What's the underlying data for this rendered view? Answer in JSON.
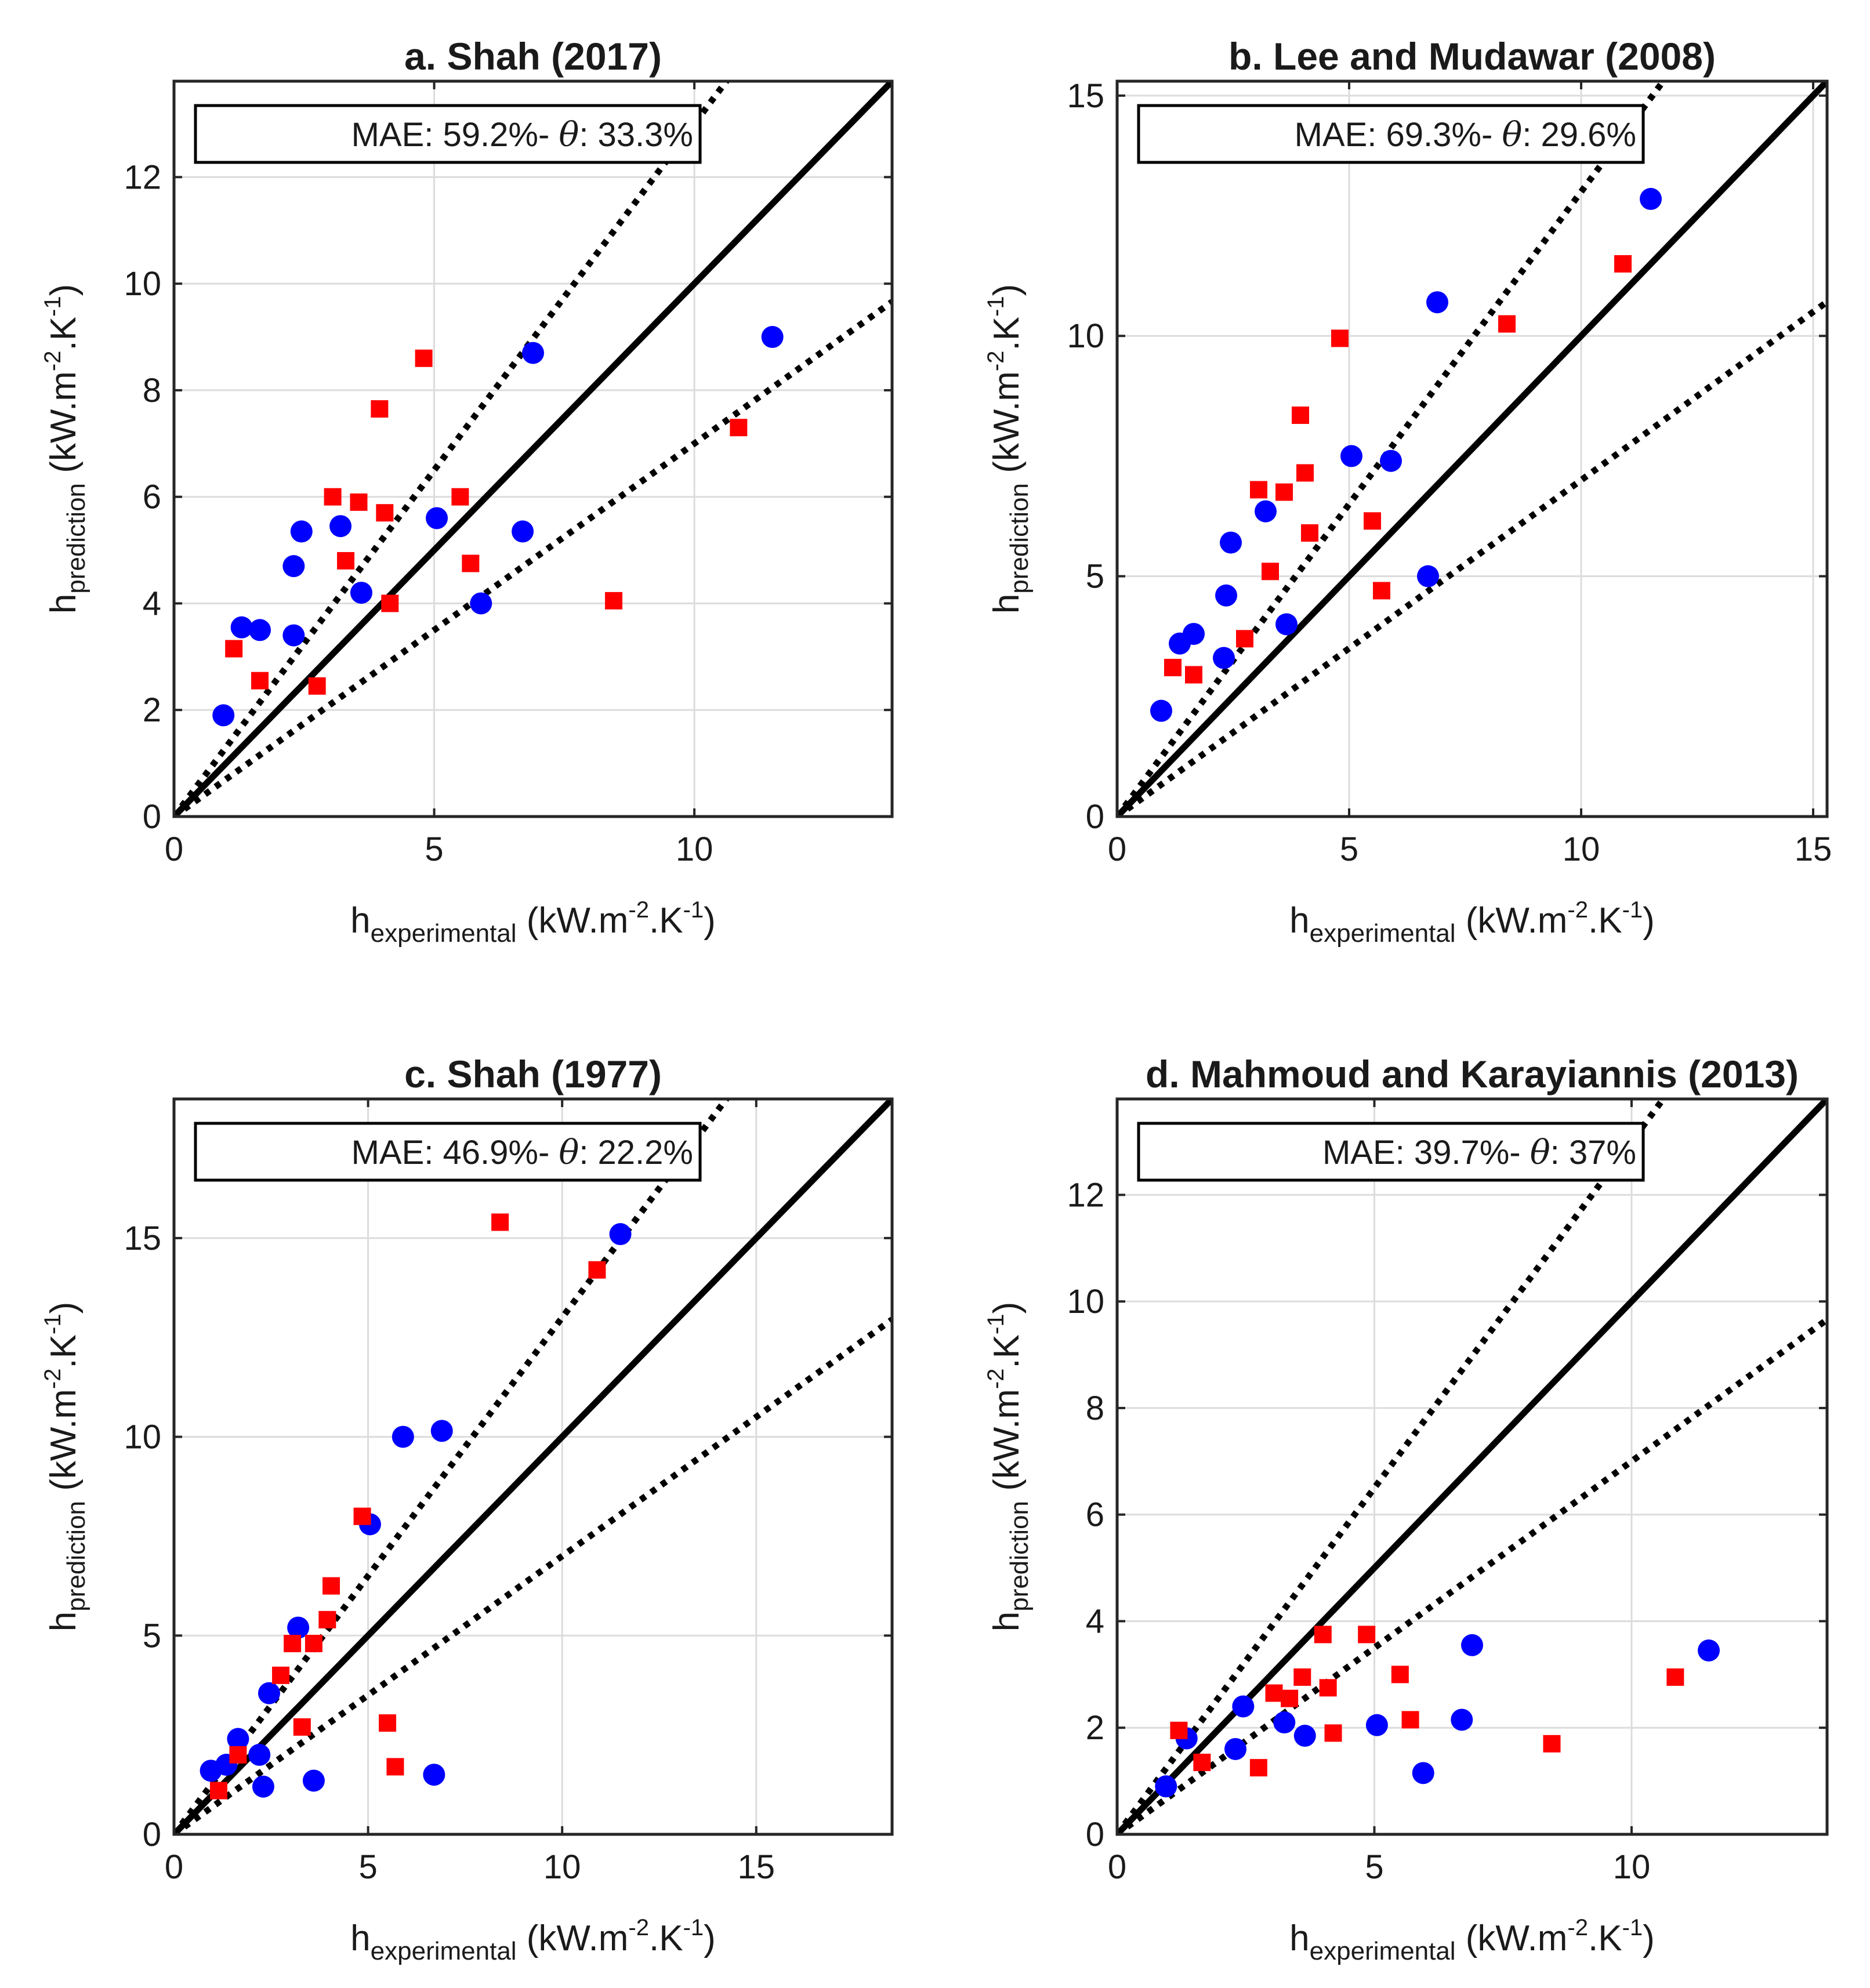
{
  "figure": {
    "xlabel_base": "h",
    "xlabel_sub": "experimental",
    "ylabel_base": "h",
    "ylabel_sub": "prediction",
    "unit_prefix": "(kW.m",
    "unit_sup1": "-2",
    "unit_mid": ".K",
    "unit_sup2": "-1",
    "unit_suffix": ")",
    "colors": {
      "circle": "#0000ff",
      "square": "#ff0000",
      "axis": "#262626",
      "grid": "#dcdcdc"
    }
  },
  "chart_data": [
    {
      "type": "scatter",
      "title": "a. Shah (2017)",
      "mae_label": "MAE: 59.2%- ",
      "theta_symbol": "θ",
      "theta_label": ": 33.3%",
      "xlim": [
        0,
        13.8
      ],
      "ylim": [
        0,
        13.8
      ],
      "xticks": [
        0,
        5,
        10
      ],
      "yticks": [
        0,
        2,
        4,
        6,
        8,
        10,
        12
      ],
      "reference_lines": {
        "y_equals_x": true,
        "band": [
          0.7,
          1.3
        ]
      },
      "series": [
        {
          "name": "circles",
          "marker": "circle",
          "color": "#0000ff",
          "points": [
            [
              0.95,
              1.9
            ],
            [
              1.3,
              3.55
            ],
            [
              1.65,
              3.5
            ],
            [
              2.3,
              4.7
            ],
            [
              2.45,
              5.35
            ],
            [
              2.3,
              3.4
            ],
            [
              3.2,
              5.45
            ],
            [
              3.6,
              4.2
            ],
            [
              5.05,
              5.6
            ],
            [
              5.9,
              4.0
            ],
            [
              6.7,
              5.35
            ],
            [
              6.9,
              8.7
            ],
            [
              11.5,
              9.0
            ]
          ]
        },
        {
          "name": "squares",
          "marker": "square",
          "color": "#ff0000",
          "points": [
            [
              1.15,
              3.15
            ],
            [
              1.65,
              2.55
            ],
            [
              2.75,
              2.45
            ],
            [
              3.05,
              6.0
            ],
            [
              3.3,
              4.8
            ],
            [
              3.55,
              5.9
            ],
            [
              3.95,
              7.65
            ],
            [
              4.05,
              5.7
            ],
            [
              4.15,
              4.0
            ],
            [
              4.8,
              8.6
            ],
            [
              5.5,
              6.0
            ],
            [
              5.7,
              4.75
            ],
            [
              8.45,
              4.05
            ],
            [
              10.85,
              7.3
            ]
          ]
        }
      ]
    },
    {
      "type": "scatter",
      "title": "b. Lee and Mudawar (2008)",
      "mae_label": "MAE: 69.3%- ",
      "theta_symbol": "θ",
      "theta_label": ": 29.6%",
      "xlim": [
        0,
        15.3
      ],
      "ylim": [
        0,
        15.3
      ],
      "xticks": [
        0,
        5,
        10,
        15
      ],
      "yticks": [
        0,
        5,
        10,
        15
      ],
      "reference_lines": {
        "y_equals_x": true,
        "band": [
          0.7,
          1.3
        ]
      },
      "series": [
        {
          "name": "circles",
          "marker": "circle",
          "color": "#0000ff",
          "points": [
            [
              0.95,
              2.2
            ],
            [
              1.35,
              3.6
            ],
            [
              1.65,
              3.8
            ],
            [
              2.3,
              3.3
            ],
            [
              2.35,
              4.6
            ],
            [
              2.45,
              5.7
            ],
            [
              3.2,
              6.35
            ],
            [
              3.65,
              4.0
            ],
            [
              5.05,
              7.5
            ],
            [
              5.9,
              7.4
            ],
            [
              6.7,
              5.0
            ],
            [
              6.9,
              10.7
            ],
            [
              11.5,
              12.85
            ]
          ]
        },
        {
          "name": "squares",
          "marker": "square",
          "color": "#ff0000",
          "points": [
            [
              1.2,
              3.1
            ],
            [
              1.65,
              2.95
            ],
            [
              2.75,
              3.7
            ],
            [
              3.05,
              6.8
            ],
            [
              3.3,
              5.1
            ],
            [
              3.6,
              6.75
            ],
            [
              3.95,
              8.35
            ],
            [
              4.05,
              7.15
            ],
            [
              4.15,
              5.9
            ],
            [
              4.8,
              9.95
            ],
            [
              5.5,
              6.15
            ],
            [
              5.7,
              4.7
            ],
            [
              8.4,
              10.25
            ],
            [
              10.9,
              11.5
            ]
          ]
        }
      ]
    },
    {
      "type": "scatter",
      "title": "c. Shah (1977)",
      "mae_label": "MAE: 46.9%- ",
      "theta_symbol": "θ",
      "theta_label": ": 22.2%",
      "xlim": [
        0,
        18.5
      ],
      "ylim": [
        0,
        18.5
      ],
      "xticks": [
        0,
        5,
        10,
        15
      ],
      "yticks": [
        0,
        5,
        10,
        15
      ],
      "reference_lines": {
        "y_equals_x": true,
        "band": [
          0.7,
          1.3
        ]
      },
      "series": [
        {
          "name": "circles",
          "marker": "circle",
          "color": "#0000ff",
          "points": [
            [
              0.95,
              1.6
            ],
            [
              1.35,
              1.75
            ],
            [
              1.65,
              2.4
            ],
            [
              2.2,
              2.0
            ],
            [
              2.3,
              1.2
            ],
            [
              2.45,
              3.55
            ],
            [
              3.2,
              5.2
            ],
            [
              3.6,
              1.35
            ],
            [
              5.05,
              7.8
            ],
            [
              5.9,
              10.0
            ],
            [
              6.9,
              10.15
            ],
            [
              6.7,
              1.5
            ],
            [
              11.5,
              15.1
            ]
          ]
        },
        {
          "name": "squares",
          "marker": "square",
          "color": "#ff0000",
          "points": [
            [
              1.15,
              1.1
            ],
            [
              1.65,
              2.0
            ],
            [
              2.75,
              4.0
            ],
            [
              3.05,
              4.8
            ],
            [
              3.3,
              2.7
            ],
            [
              3.6,
              4.8
            ],
            [
              3.95,
              5.4
            ],
            [
              4.05,
              6.25
            ],
            [
              4.85,
              8.0
            ],
            [
              5.5,
              2.8
            ],
            [
              5.7,
              1.7
            ],
            [
              8.4,
              15.4
            ],
            [
              10.9,
              14.2
            ]
          ]
        }
      ]
    },
    {
      "type": "scatter",
      "title": "d. Mahmoud and Karayiannis (2013)",
      "mae_label": "MAE: 39.7%- ",
      "theta_symbol": "θ",
      "theta_label": ": 37%",
      "xlim": [
        0,
        13.8
      ],
      "ylim": [
        0,
        13.8
      ],
      "xticks": [
        0,
        5,
        10
      ],
      "yticks": [
        0,
        2,
        4,
        6,
        8,
        10,
        12
      ],
      "reference_lines": {
        "y_equals_x": true,
        "band": [
          0.7,
          1.3
        ]
      },
      "series": [
        {
          "name": "circles",
          "marker": "circle",
          "color": "#0000ff",
          "points": [
            [
              0.95,
              0.9
            ],
            [
              1.35,
              1.8
            ],
            [
              2.3,
              1.6
            ],
            [
              2.45,
              2.4
            ],
            [
              3.25,
              2.1
            ],
            [
              3.65,
              1.85
            ],
            [
              5.05,
              2.05
            ],
            [
              5.95,
              1.15
            ],
            [
              6.7,
              2.15
            ],
            [
              6.9,
              3.55
            ],
            [
              11.5,
              3.45
            ]
          ]
        },
        {
          "name": "squares",
          "marker": "square",
          "color": "#ff0000",
          "points": [
            [
              1.2,
              1.95
            ],
            [
              1.65,
              1.35
            ],
            [
              2.75,
              1.25
            ],
            [
              3.05,
              2.65
            ],
            [
              3.35,
              2.55
            ],
            [
              3.6,
              2.95
            ],
            [
              4.0,
              3.75
            ],
            [
              4.1,
              2.75
            ],
            [
              4.2,
              1.9
            ],
            [
              4.85,
              3.75
            ],
            [
              5.5,
              3.0
            ],
            [
              5.7,
              2.15
            ],
            [
              8.45,
              1.7
            ],
            [
              10.85,
              2.95
            ]
          ]
        }
      ]
    }
  ]
}
